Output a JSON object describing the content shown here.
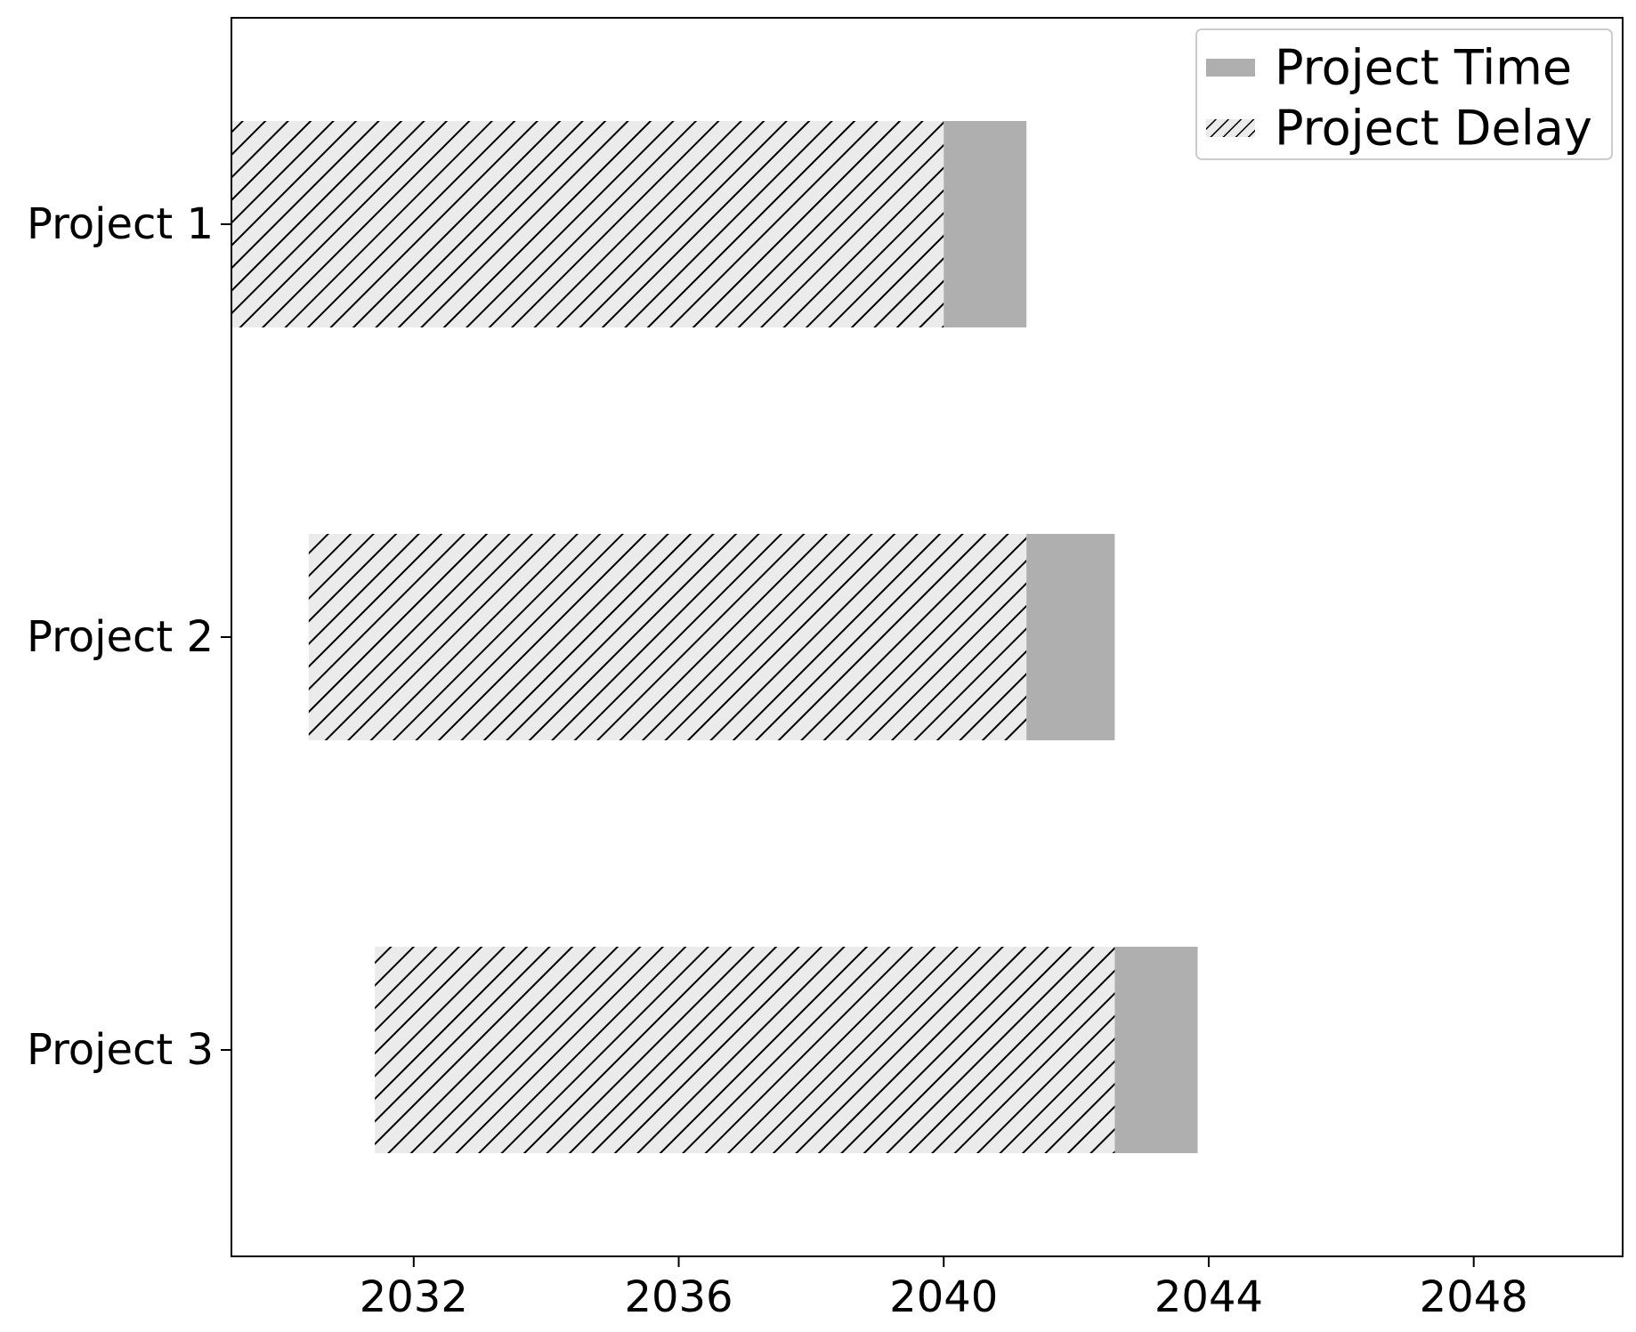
{
  "chart_data": {
    "type": "bar",
    "orientation": "horizontal",
    "categories": [
      "Project 1",
      "Project 2",
      "Project 3"
    ],
    "series": [
      {
        "name": "Project Delay",
        "style": "hatched",
        "fill_color": "#ebebeb",
        "hatch_color": "#000000",
        "start": [
          "2029-04-01",
          "2030-06-01",
          "2031-06-01"
        ],
        "end": [
          "2040-01-01",
          "2041-04-01",
          "2042-08-01"
        ]
      },
      {
        "name": "Project Time",
        "style": "solid",
        "fill_color": "#afafaf",
        "start": [
          "2040-01-01",
          "2041-04-01",
          "2042-08-01"
        ],
        "end": [
          "2041-04-01",
          "2042-08-01",
          "2043-11-01"
        ]
      }
    ],
    "x_ticks": [
      "2032",
      "2036",
      "2040",
      "2044",
      "2048"
    ],
    "xlim": [
      "2029-04-01",
      "2050-04-01"
    ],
    "title": "",
    "xlabel": "",
    "ylabel": "",
    "grid": false,
    "legend": {
      "position": "top-right",
      "entries": [
        "Project Time",
        "Project Delay"
      ]
    }
  }
}
